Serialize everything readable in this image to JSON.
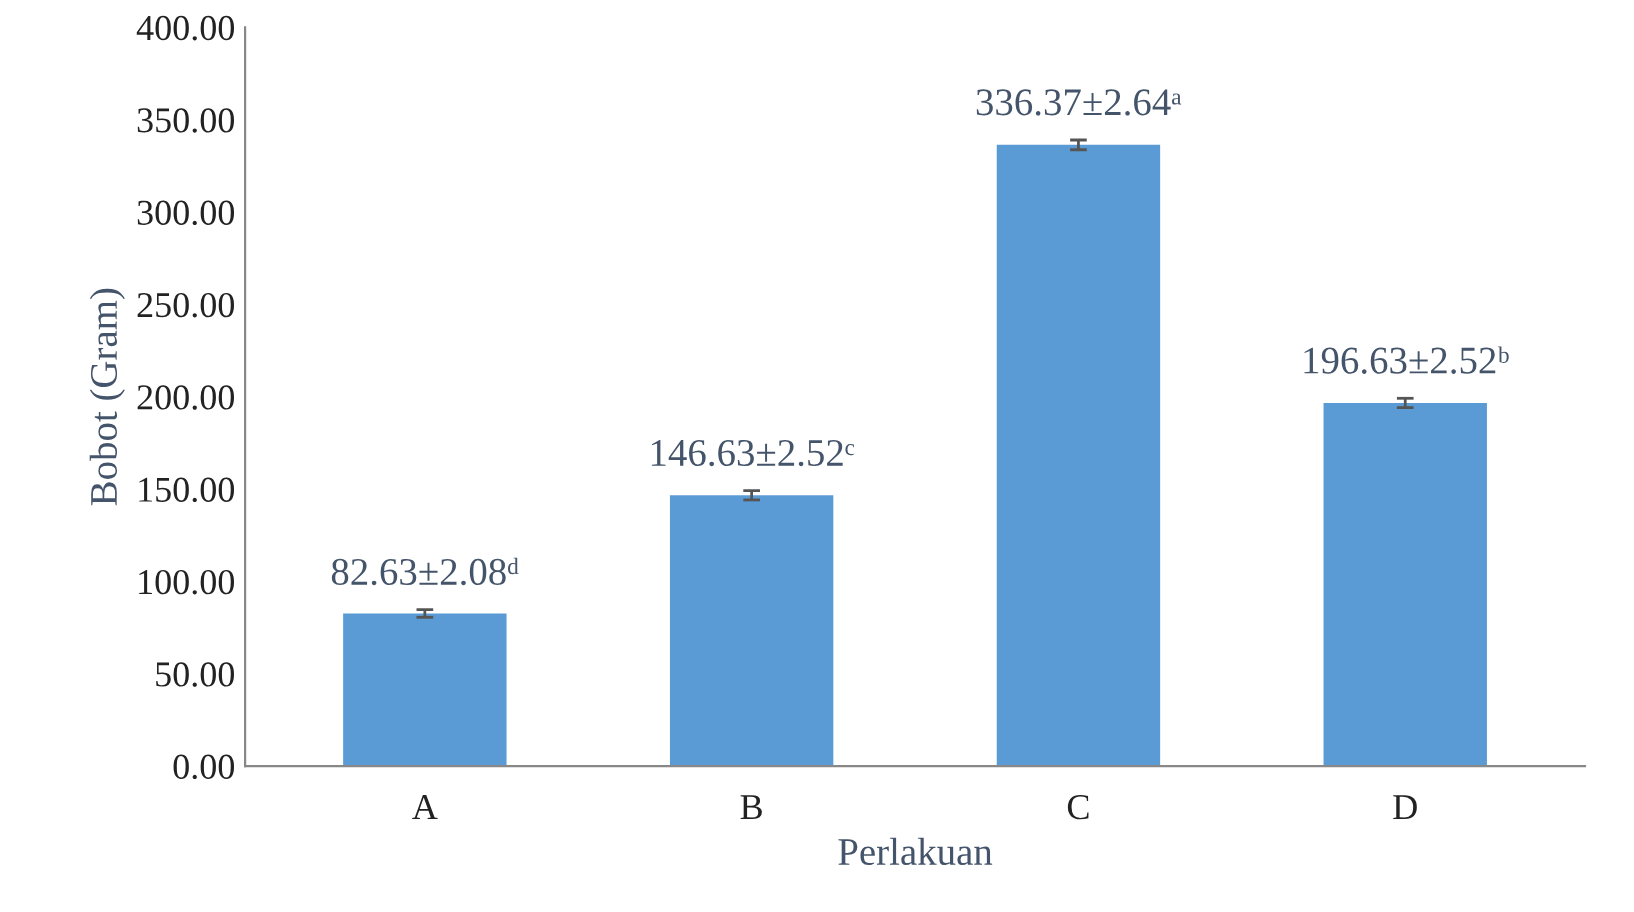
{
  "chart_data": {
    "type": "bar",
    "xlabel": "Perlakuan",
    "ylabel": "Bobot (Gram)",
    "categories": [
      "A",
      "B",
      "C",
      "D"
    ],
    "values": [
      82.63,
      146.63,
      336.37,
      196.63
    ],
    "errors": [
      2.08,
      2.52,
      2.64,
      2.52
    ],
    "value_labels": [
      "82.63±2.08ᵈ",
      "146.63±2.52ᶜ",
      "336.37±2.64ᵃ",
      "196.63±2.52ᵇ"
    ],
    "color": "#5b9bd5",
    "ylim": [
      0,
      400
    ],
    "yticks": [
      {
        "value": 0,
        "label": "0.00"
      },
      {
        "value": 50,
        "label": "50.00"
      },
      {
        "value": 100,
        "label": "100.00"
      },
      {
        "value": 150,
        "label": "150.00"
      },
      {
        "value": 200,
        "label": "200.00"
      },
      {
        "value": 250,
        "label": "250.00"
      },
      {
        "value": 300,
        "label": "300.00"
      },
      {
        "value": 350,
        "label": "350.00"
      },
      {
        "value": 400,
        "label": "400.00"
      }
    ],
    "grid": false,
    "legend": false
  }
}
